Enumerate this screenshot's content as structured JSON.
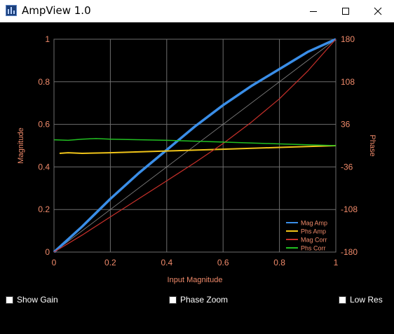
{
  "window": {
    "title": "AmpView 1.0",
    "icons": [
      "app-icon",
      "minimize-icon",
      "maximize-icon",
      "close-icon"
    ]
  },
  "colors": {
    "background": "#000000",
    "axis_text": "#f08a6a",
    "grid": "#6e6e6e",
    "mag_amp": "#3a8ee8",
    "phs_amp": "#f0c419",
    "mag_corr": "#c8302a",
    "phs_corr": "#22c022",
    "reference": "#888888"
  },
  "controls": {
    "show_gain": {
      "label": "Show Gain",
      "checked": false
    },
    "phase_zoom": {
      "label": "Phase Zoom",
      "checked": false
    },
    "low_res": {
      "label": "Low Res",
      "checked": false
    }
  },
  "chart_data": {
    "type": "line",
    "title": "",
    "xlabel": "Input Magnitude",
    "ylabel": "Magnitude",
    "y2label": "Phase",
    "xlim": [
      0,
      1
    ],
    "ylim": [
      0,
      1
    ],
    "y2lim": [
      -180,
      180
    ],
    "xticks": [
      "0",
      "0.2",
      "0.4",
      "0.6",
      "0.8",
      "1"
    ],
    "yticks": [
      "0",
      "0.2",
      "0.4",
      "0.6",
      "0.8",
      "1"
    ],
    "y2ticks": [
      "-180",
      "-108",
      "-36",
      "36",
      "108",
      "180"
    ],
    "grid": true,
    "legend_position": "bottom-right",
    "series": [
      {
        "name": "Mag Amp",
        "axis": "left",
        "x": [
          0,
          0.05,
          0.1,
          0.2,
          0.3,
          0.4,
          0.5,
          0.6,
          0.7,
          0.8,
          0.9,
          1.0
        ],
        "y": [
          0,
          0.06,
          0.12,
          0.25,
          0.37,
          0.48,
          0.59,
          0.69,
          0.78,
          0.86,
          0.94,
          1.0
        ]
      },
      {
        "name": "Phs Amp",
        "axis": "right",
        "x": [
          0.02,
          0.05,
          0.1,
          0.2,
          0.4,
          0.6,
          0.8,
          1.0
        ],
        "y": [
          -13,
          -12,
          -13,
          -12,
          -9,
          -6,
          -3,
          0
        ]
      },
      {
        "name": "Mag Corr",
        "axis": "left",
        "x": [
          0,
          0.1,
          0.2,
          0.3,
          0.4,
          0.5,
          0.6,
          0.7,
          0.8,
          0.9,
          1.0
        ],
        "y": [
          0,
          0.08,
          0.165,
          0.25,
          0.335,
          0.42,
          0.51,
          0.61,
          0.72,
          0.85,
          1.0
        ]
      },
      {
        "name": "Phs Corr",
        "axis": "right",
        "x": [
          0,
          0.05,
          0.1,
          0.15,
          0.2,
          0.4,
          0.6,
          0.8,
          1.0
        ],
        "y": [
          10,
          9,
          11,
          12,
          11,
          9,
          6,
          3,
          0
        ]
      }
    ]
  }
}
